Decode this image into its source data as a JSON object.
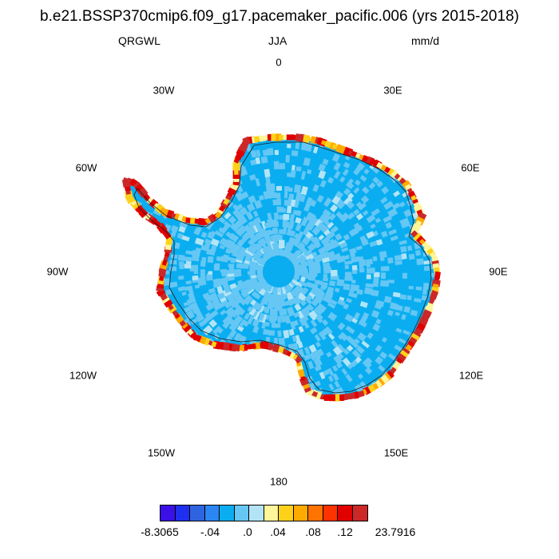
{
  "title": "b.e21.BSSP370cmip6.f09_g17.pacemaker_pacific.006 (yrs 2015-2018)",
  "variable": "QRGWL",
  "season": "JJA",
  "units": "mm/d",
  "longitude_labels": [
    "0",
    "30E",
    "60E",
    "90E",
    "120E",
    "150E",
    "180",
    "150W",
    "120W",
    "90W",
    "60W",
    "30W"
  ],
  "colorbar": {
    "colors": [
      "#3a10e6",
      "#1f2ff0",
      "#2f64e0",
      "#2b86f4",
      "#0aaef0",
      "#66c7f4",
      "#b3e4f6",
      "#fff59a",
      "#ffd21a",
      "#ffaa00",
      "#ff7300",
      "#ff3300",
      "#e00000",
      "#cc2828"
    ],
    "labels": [
      "-8.3065",
      "-.04",
      ".0",
      ".04",
      ".08",
      ".12",
      "23.7916"
    ]
  },
  "map_colors": {
    "interior": "#0aaef0",
    "interior_alt": "#66c7f4",
    "pale": "#b3e4f6",
    "yellow": "#ffd21a",
    "light_yellow": "#fff59a",
    "orange": "#ffaa00",
    "red": "#e00000",
    "dark_red": "#cc2828"
  }
}
